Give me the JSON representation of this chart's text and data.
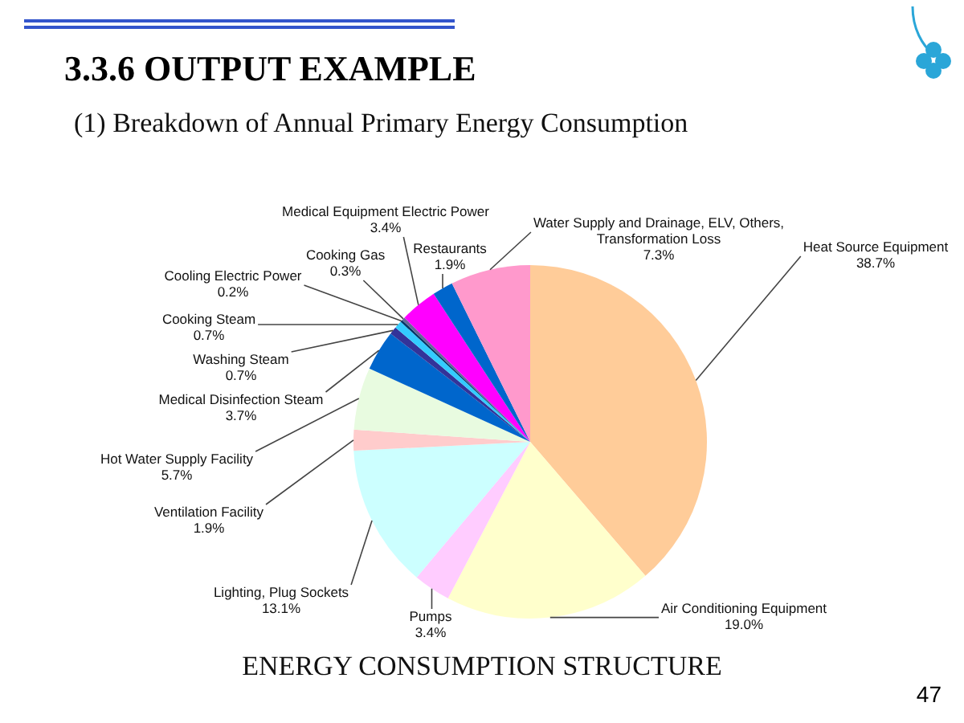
{
  "chart_data": {
    "type": "pie",
    "title": "3.3.6 OUTPUT EXAMPLE",
    "subtitle": "(1) Breakdown of Annual Primary Energy Consumption",
    "categories": [
      "Heat Source Equipment",
      "Air Conditioning Equipment",
      "Pumps",
      "Lighting, Plug Sockets",
      "Ventilation Facility",
      "Hot Water Supply Facility",
      "Medical Disinfection Steam",
      "Washing Steam",
      "Cooking Steam",
      "Cooling Electric Power",
      "Cooking Gas",
      "Medical Equipment Electric Power",
      "Restaurants",
      "Water Supply and Drainage, ELV, Others, Transformation Loss"
    ],
    "values": [
      38.7,
      19.0,
      3.4,
      13.1,
      1.9,
      5.7,
      3.7,
      0.7,
      0.7,
      0.2,
      0.3,
      3.4,
      1.9,
      7.3
    ],
    "value_labels": [
      "38.7%",
      "19.0%",
      "3.4%",
      "13.1%",
      "1.9%",
      "5.7%",
      "3.7%",
      "0.7%",
      "0.7%",
      "0.2%",
      "0.3%",
      "3.4%",
      "1.9%",
      "7.3%"
    ],
    "colors": [
      "#ffcc99",
      "#ffffcc",
      "#ffccff",
      "#ccffff",
      "#ffcccc",
      "#e8fbe0",
      "#0066cc",
      "#333399",
      "#33ccff",
      "#003366",
      "#666699",
      "#ff00ff",
      "#0066cc",
      "#ff99cc"
    ],
    "annotations": [
      "ENERGY CONSUMPTION STRUCTURE",
      "47"
    ]
  }
}
